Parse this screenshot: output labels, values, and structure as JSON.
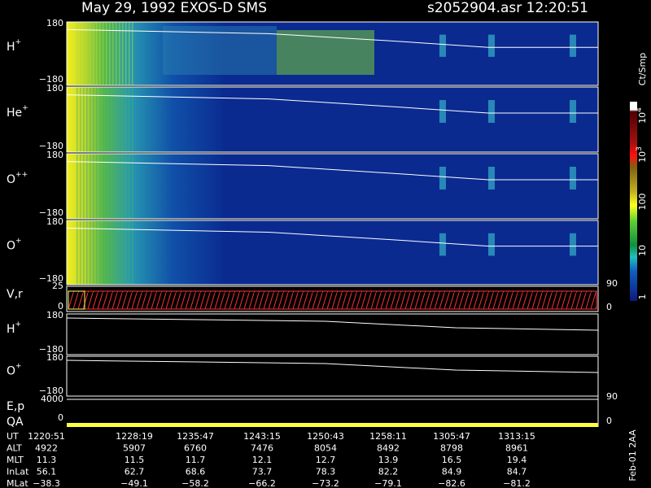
{
  "header": {
    "title": "May 29, 1992   EXOS-D SMS",
    "file": "s2052904.asr  12:20:51"
  },
  "spectrograms": [
    {
      "species": "H",
      "charge": "+",
      "top": "180",
      "bottom": "−180"
    },
    {
      "species": "He",
      "charge": "+",
      "top": "180",
      "bottom": "−180"
    },
    {
      "species": "O",
      "charge": "++",
      "top": "180",
      "bottom": "−180"
    },
    {
      "species": "O",
      "charge": "+",
      "top": "180",
      "bottom": "−180"
    }
  ],
  "velocity": {
    "label": "V,r",
    "top": "25",
    "bottom": "0",
    "right_top": "90",
    "right_bottom": "0"
  },
  "pitch": [
    {
      "species": "H",
      "charge": "+",
      "top": "180",
      "bottom": "−180"
    },
    {
      "species": "O",
      "charge": "+",
      "top": "180",
      "bottom": "−180"
    }
  ],
  "energy": {
    "label": "E,p",
    "top": "4000",
    "bottom": "0",
    "right_top": "90",
    "right_bottom": "0"
  },
  "qa": {
    "label": "QA"
  },
  "colorbar": {
    "unit": "Ct/Smp",
    "labels": [
      {
        "base": "10",
        "exp": "4"
      },
      {
        "base": "10",
        "exp": "3"
      },
      {
        "base": "100",
        "exp": ""
      },
      {
        "base": "10",
        "exp": ""
      },
      {
        "base": "1",
        "exp": ""
      }
    ]
  },
  "table": {
    "rows": [
      [
        "UT",
        "1220:51",
        "1228:19",
        "1235:47",
        "1243:15",
        "1250:43",
        "1258:11",
        "1305:47",
        "1313:15"
      ],
      [
        "ALT",
        "4922",
        "5907",
        "6760",
        "7476",
        "8054",
        "8492",
        "8798",
        "8961"
      ],
      [
        "MLT",
        "11.3",
        "11.5",
        "11.7",
        "12.1",
        "12.7",
        "13.9",
        "16.5",
        "19.4"
      ],
      [
        "InLat",
        "56.1",
        "62.7",
        "68.6",
        "73.7",
        "78.3",
        "82.2",
        "84.9",
        "84.7"
      ],
      [
        "MLat",
        "−38.3",
        "−49.1",
        "−58.2",
        "−66.2",
        "−73.2",
        "−79.1",
        "−82.6",
        "−81.2"
      ]
    ]
  },
  "footer": "Feb-01 2AA"
}
